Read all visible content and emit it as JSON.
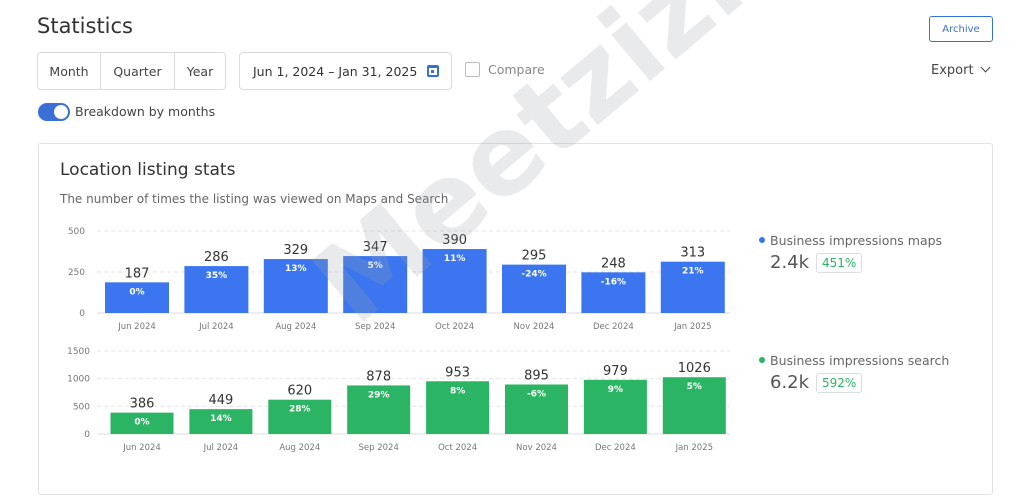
{
  "header": {
    "title": "Statistics",
    "archive_label": "Archive",
    "export_label": "Export"
  },
  "period_tabs": [
    "Month",
    "Quarter",
    "Year"
  ],
  "date_range": "Jun 1, 2024 – Jan 31, 2025",
  "compare_label": "Compare",
  "compare_checked": false,
  "breakdown": {
    "label": "Breakdown by months",
    "enabled": true
  },
  "card": {
    "title": "Location listing stats",
    "subtitle": "The number of times the listing was viewed on Maps and Search"
  },
  "watermark": "Meetzizi",
  "legend": [
    {
      "label": "Business impressions maps",
      "total": "2.4k",
      "change": "451%",
      "color": "#3b76f0"
    },
    {
      "label": "Business impressions search",
      "total": "6.2k",
      "change": "592%",
      "color": "#2bb463"
    }
  ],
  "chart_data": [
    {
      "type": "bar",
      "categories": [
        "Jun 2024",
        "Jul 2024",
        "Aug 2024",
        "Sep 2024",
        "Oct 2024",
        "Nov 2024",
        "Dec 2024",
        "Jan 2025"
      ],
      "series": [
        {
          "name": "Business impressions maps",
          "values": [
            187,
            286,
            329,
            347,
            390,
            295,
            248,
            313
          ],
          "changes": [
            "0%",
            "35%",
            "13%",
            "5%",
            "11%",
            "-24%",
            "-16%",
            "21%"
          ]
        }
      ],
      "yticks": [
        0,
        250,
        500
      ],
      "ylim": [
        0,
        500
      ],
      "grid": true,
      "color": "#3b76f0"
    },
    {
      "type": "bar",
      "categories": [
        "Jun 2024",
        "Jul 2024",
        "Aug 2024",
        "Sep 2024",
        "Oct 2024",
        "Nov 2024",
        "Dec 2024",
        "Jan 2025"
      ],
      "series": [
        {
          "name": "Business impressions search",
          "values": [
            386,
            449,
            620,
            878,
            953,
            895,
            979,
            1026
          ],
          "changes": [
            "0%",
            "14%",
            "28%",
            "29%",
            "8%",
            "-6%",
            "9%",
            "5%"
          ]
        }
      ],
      "yticks": [
        0,
        500,
        1000,
        1500
      ],
      "ylim": [
        0,
        1500
      ],
      "grid": true,
      "color": "#2bb463"
    }
  ]
}
